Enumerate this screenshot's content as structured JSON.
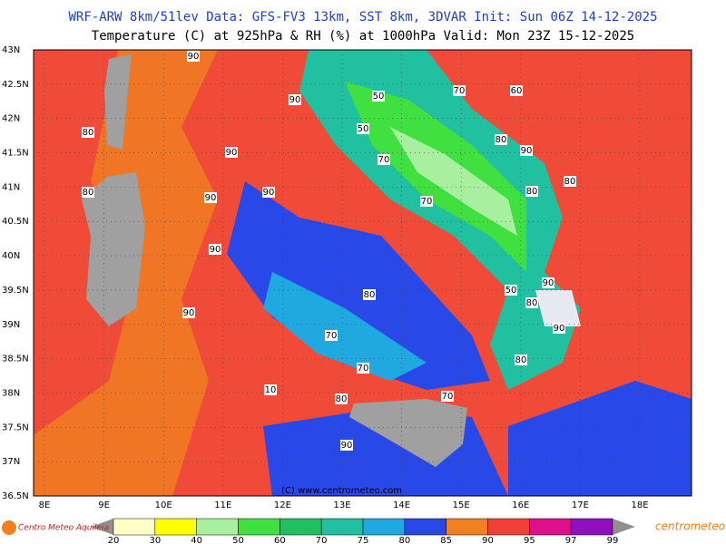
{
  "header": {
    "line1": "WRF-ARW 8km/51lev  Data: GFS-FV3 13km, SST 8km, 3DVAR  Init: Sun 06Z 14-12-2025",
    "line2": "Temperature (C) at 925hPa & RH (%) at 1000hPa  Valid: Mon 23Z 15-12-2025"
  },
  "map": {
    "lat_labels": [
      "43N",
      "42.5N",
      "42N",
      "41.5N",
      "41N",
      "40.5N",
      "40N",
      "39.5N",
      "39N",
      "38.5N",
      "38N",
      "37.5N",
      "37N",
      "36.5N"
    ],
    "lon_labels": [
      "8E",
      "9E",
      "10E",
      "11E",
      "12E",
      "13E",
      "14E",
      "15E",
      "16E",
      "17E",
      "18E"
    ],
    "contour_labels": [
      90,
      90,
      90,
      90,
      90,
      90,
      80,
      80,
      50,
      70,
      50,
      60,
      70,
      80,
      90,
      80,
      80,
      70,
      80,
      70,
      80,
      90,
      90,
      10,
      90,
      80,
      70,
      80,
      50,
      70,
      90
    ],
    "copyright": "(C) www.centrometeo.com"
  },
  "colorbar": {
    "ticks": [
      20,
      30,
      40,
      50,
      60,
      70,
      75,
      80,
      85,
      90,
      95,
      97,
      99
    ],
    "colors": [
      "#ffffc8",
      "#ffff00",
      "#a8f0a0",
      "#40e040",
      "#20c060",
      "#20c0a0",
      "#20a8e0",
      "#2848e8",
      "#f08020",
      "#f04038",
      "#e0108c",
      "#9010c0"
    ]
  },
  "footer": {
    "left_logo": "Centro Meteo Aquileia",
    "right_logo": "centrometeo"
  }
}
